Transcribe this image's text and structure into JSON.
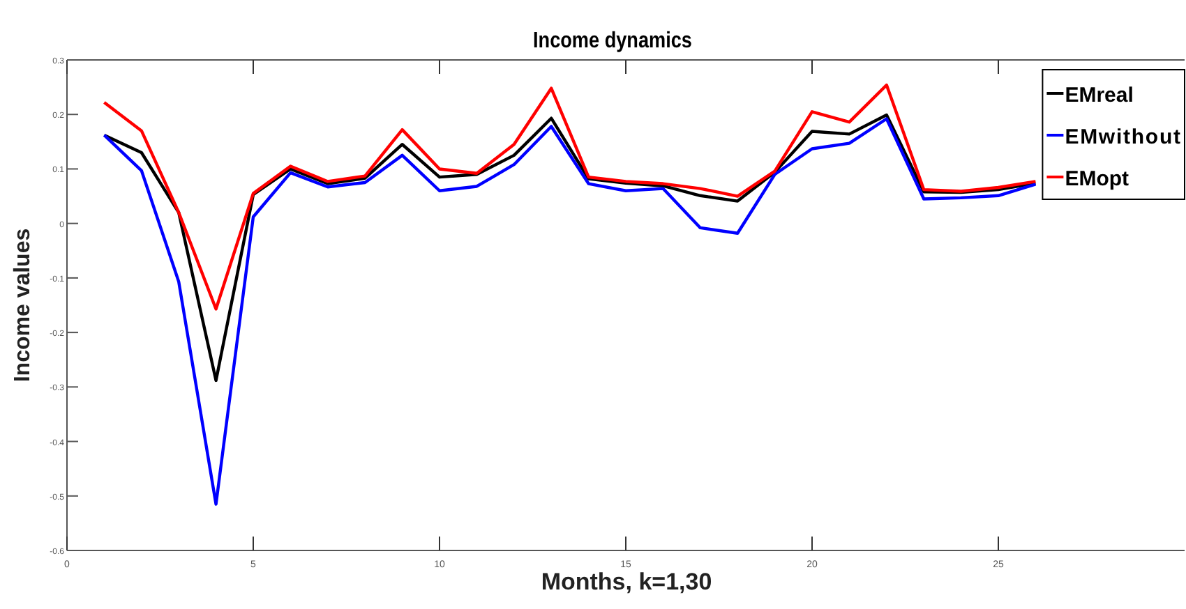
{
  "chart_data": {
    "type": "line",
    "title": "Income dynamics",
    "xlabel": "Months, k=1,30",
    "ylabel": "Income values",
    "x": [
      1,
      2,
      3,
      4,
      5,
      6,
      7,
      8,
      9,
      10,
      11,
      12,
      13,
      14,
      15,
      16,
      17,
      18,
      19,
      20,
      21,
      22,
      23,
      24,
      25,
      26
    ],
    "series": [
      {
        "name": "EMreal",
        "color": "#000000",
        "values": [
          0.162,
          0.13,
          0.02,
          -0.288,
          0.053,
          0.1,
          0.073,
          0.083,
          0.145,
          0.085,
          0.09,
          0.125,
          0.193,
          0.082,
          0.074,
          0.069,
          0.051,
          0.041,
          0.094,
          0.169,
          0.164,
          0.199,
          0.058,
          0.057,
          0.062,
          0.074
        ]
      },
      {
        "name": "EMwithout",
        "color": "#0000ff",
        "values": [
          0.162,
          0.097,
          -0.107,
          -0.515,
          0.012,
          0.093,
          0.067,
          0.075,
          0.125,
          0.06,
          0.068,
          0.108,
          0.178,
          0.073,
          0.06,
          0.064,
          -0.008,
          -0.018,
          0.09,
          0.137,
          0.147,
          0.192,
          0.045,
          0.047,
          0.051,
          0.072
        ]
      },
      {
        "name": "EMopt",
        "color": "#ff0000",
        "values": [
          0.222,
          0.17,
          0.02,
          -0.157,
          0.055,
          0.105,
          0.077,
          0.087,
          0.172,
          0.1,
          0.092,
          0.145,
          0.248,
          0.085,
          0.077,
          0.073,
          0.064,
          0.05,
          0.096,
          0.205,
          0.186,
          0.254,
          0.062,
          0.059,
          0.066,
          0.077
        ]
      }
    ],
    "xlim": [
      0,
      30
    ],
    "xticks": [
      0,
      5,
      10,
      15,
      20,
      25
    ],
    "ylim": [
      -0.6,
      0.3
    ],
    "yticks": [
      -0.6,
      -0.5,
      -0.4,
      -0.3,
      -0.2,
      -0.1,
      0,
      0.1,
      0.2,
      0.3
    ],
    "grid": false,
    "legend": "top right",
    "line_style": "solid",
    "marker": "none"
  }
}
